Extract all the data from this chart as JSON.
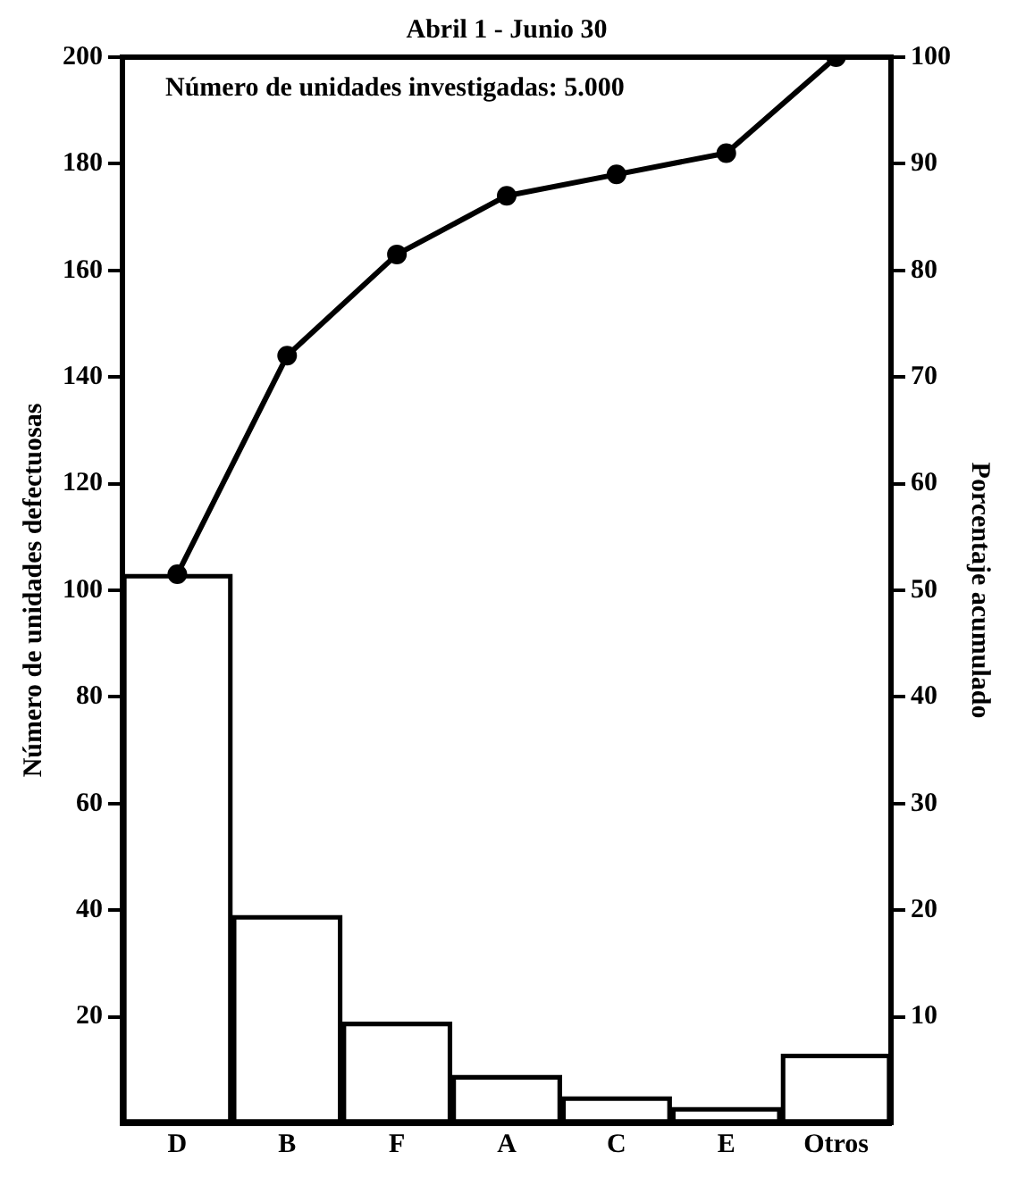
{
  "chart_data": {
    "type": "bar",
    "title": "Abril 1 - Junio 30",
    "ylabel": "Número de unidades defectuosas",
    "y2label": "Porcentaje acumulado",
    "annotations": [
      "Número de unidades investigadas: 5.000"
    ],
    "categories": [
      "D",
      "B",
      "F",
      "A",
      "C",
      "E",
      "Otros"
    ],
    "series": [
      {
        "color": "#000000",
        "values": [
          103,
          39,
          19,
          9,
          5,
          3,
          13
        ]
      },
      {
        "type": "line",
        "axis": "y2",
        "color": "#000000",
        "values": [
          51.5,
          72,
          81.5,
          87,
          89,
          91,
          100
        ]
      }
    ],
    "ylim": [
      0,
      200
    ],
    "yticks": [
      20,
      40,
      60,
      80,
      100,
      120,
      140,
      160,
      180,
      200
    ],
    "y2lim": [
      0,
      100
    ],
    "y2ticks": [
      10,
      20,
      30,
      40,
      50,
      60,
      70,
      80,
      90,
      100
    ],
    "grid": false,
    "legend": false,
    "marker": "circle",
    "line_style": "solid"
  }
}
